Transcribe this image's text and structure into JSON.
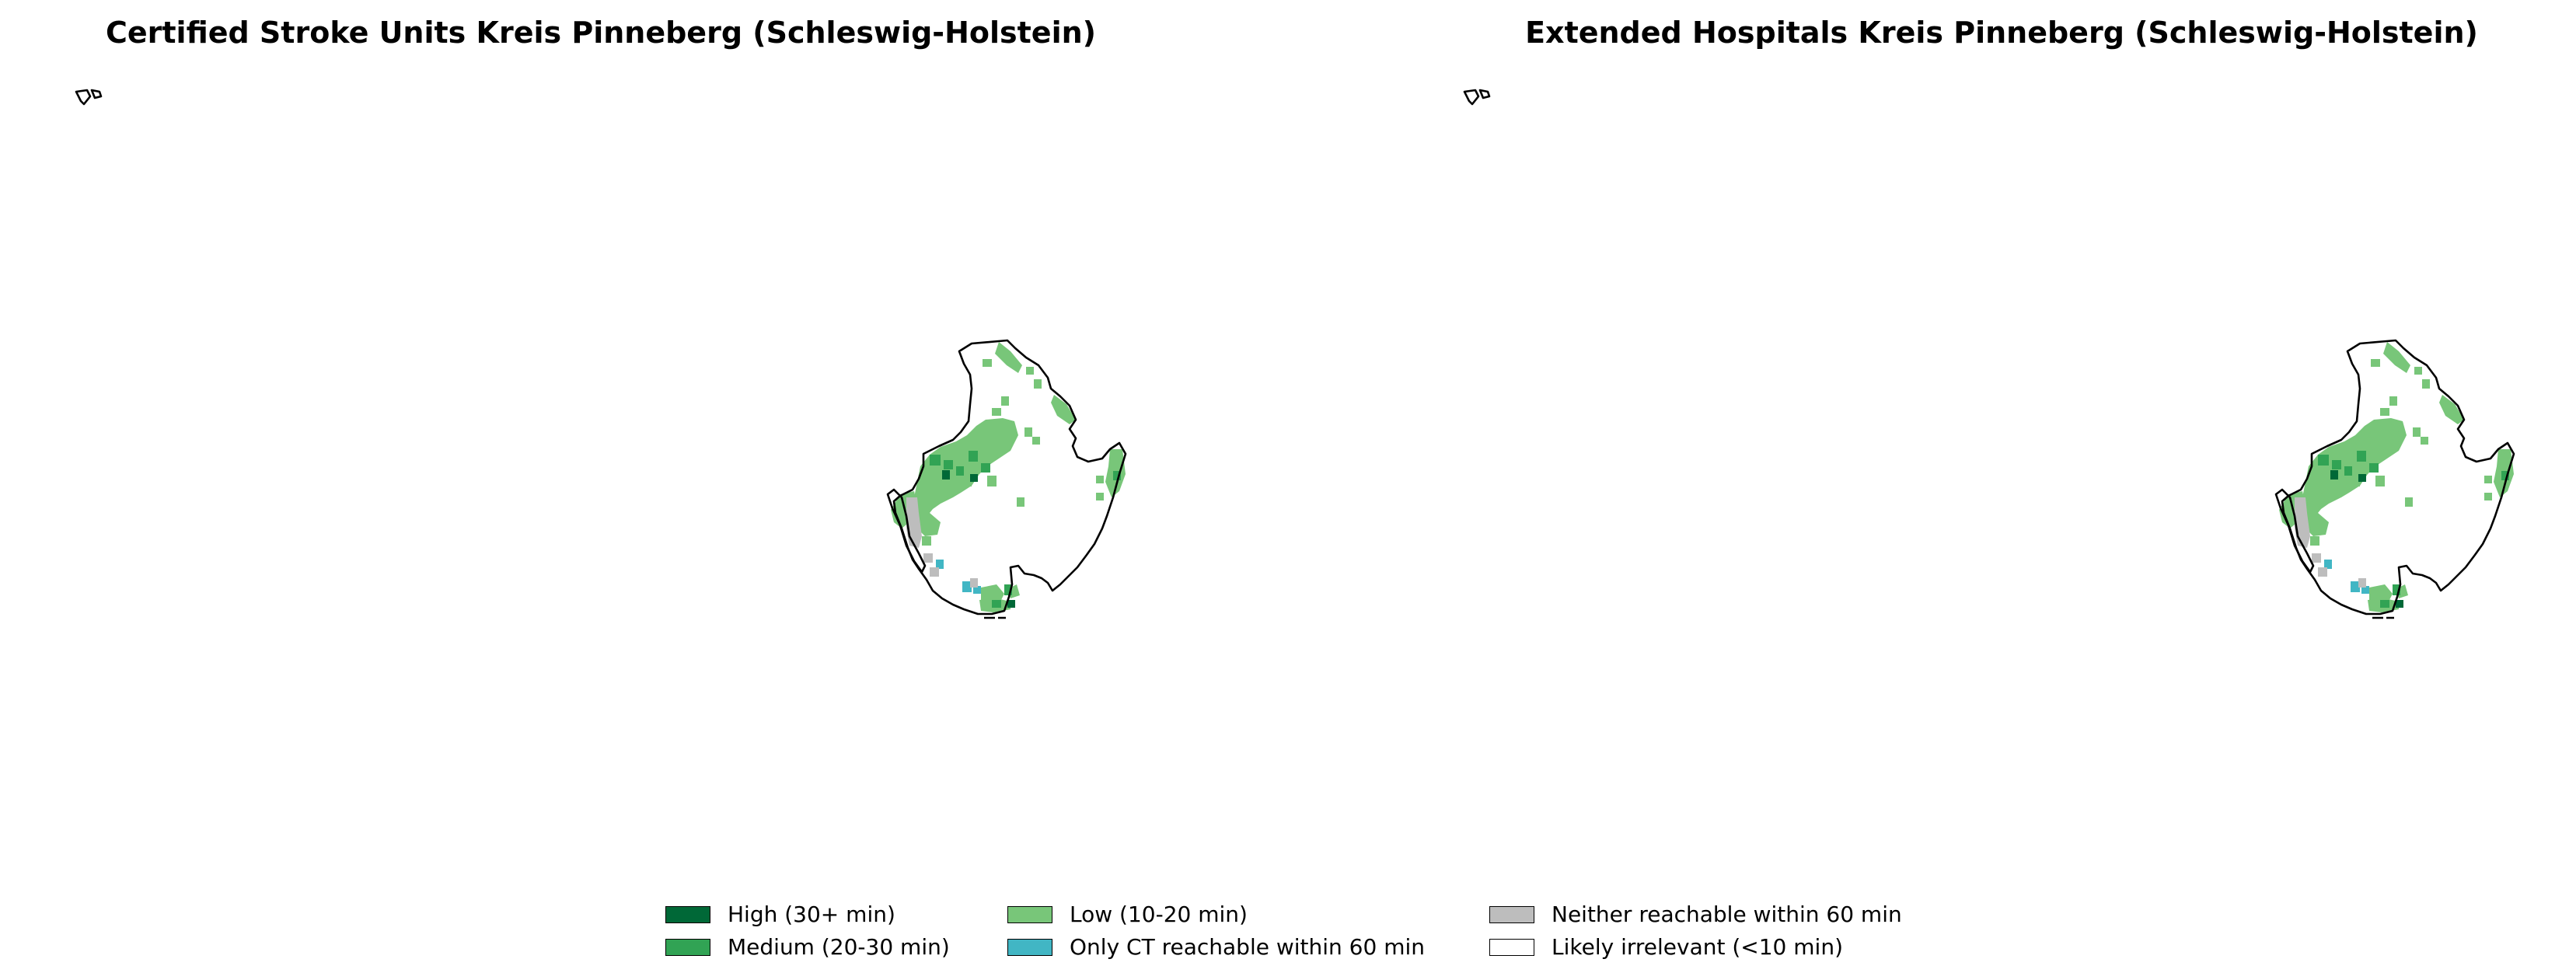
{
  "panels": [
    {
      "title": "Certified Stroke Units Kreis Pinneberg (Schleswig-Holstein)"
    },
    {
      "title": "Extended Hospitals Kreis Pinneberg (Schleswig-Holstein)"
    }
  ],
  "legend": [
    {
      "label": "High (30+ min)",
      "color": "#006837"
    },
    {
      "label": "Medium (20-30 min)",
      "color": "#31a354"
    },
    {
      "label": "Low (10-20 min)",
      "color": "#78c679"
    },
    {
      "label": "Only CT reachable within 60 min",
      "color": "#41b6c4"
    },
    {
      "label": "Neither reachable within 60 min",
      "color": "#bdbdbd"
    },
    {
      "label": "Likely irrelevant (<10 min)",
      "color": "#ffffff"
    }
  ]
}
